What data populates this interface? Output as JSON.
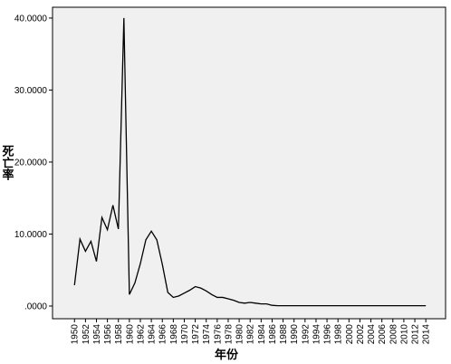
{
  "chart_data": {
    "type": "line",
    "x_label": "年份",
    "y_label": "死亡率",
    "x": [
      1950,
      1951,
      1952,
      1953,
      1954,
      1955,
      1956,
      1957,
      1958,
      1959,
      1960,
      1961,
      1962,
      1963,
      1964,
      1965,
      1966,
      1967,
      1968,
      1969,
      1970,
      1971,
      1972,
      1973,
      1974,
      1975,
      1976,
      1977,
      1978,
      1979,
      1980,
      1981,
      1982,
      1983,
      1984,
      1985,
      1986,
      1987,
      1988,
      1989,
      1990,
      1991,
      1992,
      1993,
      1994,
      1995,
      1996,
      1997,
      1998,
      1999,
      2000,
      2001,
      2002,
      2003,
      2004,
      2005,
      2006,
      2007,
      2008,
      2009,
      2010,
      2011,
      2012,
      2013,
      2014
    ],
    "series": [
      {
        "color": "#000000",
        "values": [
          2.9,
          9.3,
          7.6,
          9.0,
          6.2,
          12.3,
          10.6,
          14.0,
          10.7,
          40.0,
          1.6,
          3.2,
          5.9,
          9.2,
          10.4,
          9.2,
          5.8,
          1.9,
          1.2,
          1.4,
          1.8,
          2.2,
          2.7,
          2.5,
          2.1,
          1.6,
          1.2,
          1.2,
          1.0,
          0.8,
          0.5,
          0.4,
          0.5,
          0.4,
          0.3,
          0.3,
          0.1,
          0.05,
          0.05,
          0.05,
          0.05,
          0.05,
          0.05,
          0.05,
          0.05,
          0.05,
          0.05,
          0.05,
          0.05,
          0.05,
          0.05,
          0.05,
          0.05,
          0.05,
          0.05,
          0.05,
          0.05,
          0.05,
          0.05,
          0.05,
          0.05,
          0.05,
          0.05,
          0.05,
          0.05
        ]
      }
    ],
    "xlim": [
      1946,
      2017.6
    ],
    "xticks": [
      1950,
      1952,
      1954,
      1956,
      1958,
      1960,
      1962,
      1964,
      1966,
      1968,
      1970,
      1972,
      1974,
      1976,
      1978,
      1980,
      1982,
      1984,
      1986,
      1988,
      1990,
      1992,
      1994,
      1996,
      1998,
      2000,
      2002,
      2004,
      2006,
      2008,
      2010,
      2012,
      2014
    ],
    "ylim": [
      -1.76,
      41.5
    ],
    "yticks": [
      {
        "value": 0,
        "label": ".0000"
      },
      {
        "value": 10,
        "label": "10.0000"
      },
      {
        "value": 20,
        "label": "20.0000"
      },
      {
        "value": 30,
        "label": "30.0000"
      },
      {
        "value": 40,
        "label": "40.0000"
      }
    ],
    "grid": false
  }
}
